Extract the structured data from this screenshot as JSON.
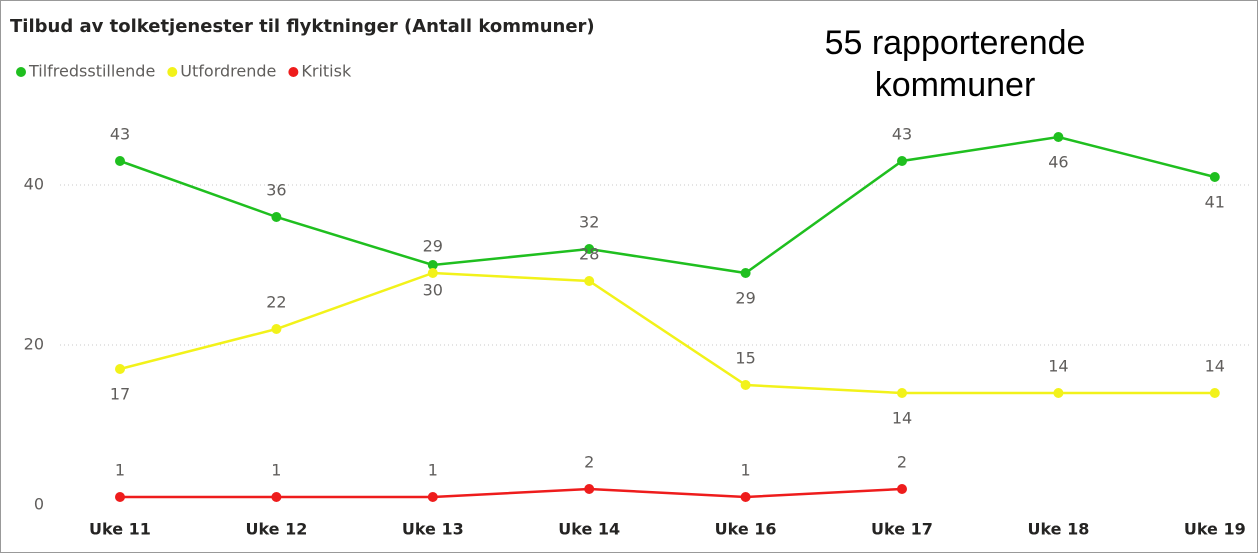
{
  "chart_data": {
    "type": "line",
    "title": "Tilbud av tolketjenester til flyktninger (Antall kommuner)",
    "annotation": "55 rapporterende kommuner",
    "categories": [
      "Uke 11",
      "Uke 12",
      "Uke 13",
      "Uke 14",
      "Uke 16",
      "Uke 17",
      "Uke 18",
      "Uke 19"
    ],
    "series": [
      {
        "name": "Tilfredsstillende",
        "color": "#1fbf1f",
        "values": [
          43,
          36,
          30,
          32,
          29,
          43,
          46,
          41
        ]
      },
      {
        "name": "Utfordrende",
        "color": "#f2f21a",
        "values": [
          17,
          22,
          29,
          28,
          15,
          14,
          14,
          14
        ]
      },
      {
        "name": "Kritisk",
        "color": "#ee1c1c",
        "values": [
          1,
          1,
          1,
          2,
          1,
          2,
          null,
          null
        ]
      }
    ],
    "ylim": [
      0,
      48
    ],
    "yticks": [
      0,
      20,
      40
    ],
    "grid": true,
    "legend": "top-left"
  }
}
